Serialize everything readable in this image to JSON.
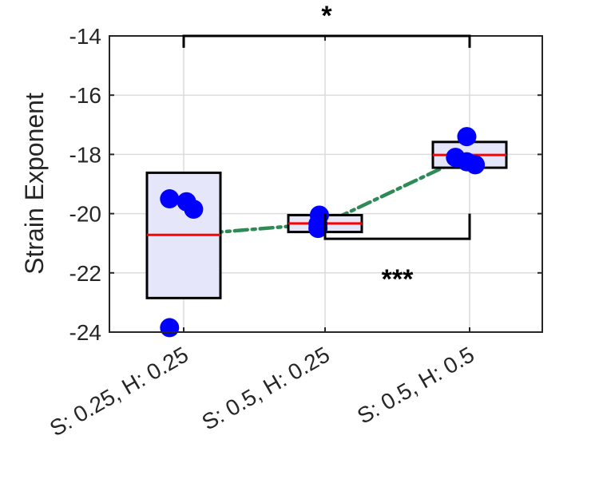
{
  "chart_data": {
    "type": "box",
    "ylabel": "Strain Exponent",
    "xlabel": "",
    "title": "",
    "ylim": [
      -24,
      -14
    ],
    "yticks": [
      -24,
      -22,
      -20,
      -18,
      -16,
      -14
    ],
    "ytick_labels": [
      "-24",
      "-22",
      "-20",
      "-18",
      "-16",
      "-14"
    ],
    "grid": true,
    "categories": [
      "S: 0.25, H: 0.25",
      "S: 0.5, H: 0.25",
      "S: 0.5, H: 0.5"
    ],
    "boxes": [
      {
        "category": "S: 0.25, H: 0.25",
        "q1": -22.85,
        "median": -20.72,
        "q3": -18.62
      },
      {
        "category": "S: 0.5, H: 0.25",
        "q1": -20.62,
        "median": -20.33,
        "q3": -20.05
      },
      {
        "category": "S: 0.5, H: 0.5",
        "q1": -18.45,
        "median": -18.02,
        "q3": -17.58
      }
    ],
    "points": [
      {
        "category_index": 0,
        "jitter": -0.1,
        "y": -19.5
      },
      {
        "category_index": 0,
        "jitter": 0.02,
        "y": -19.6
      },
      {
        "category_index": 0,
        "jitter": 0.07,
        "y": -19.85
      },
      {
        "category_index": 0,
        "jitter": -0.1,
        "y": -23.85
      },
      {
        "category_index": 1,
        "jitter": -0.04,
        "y": -20.05
      },
      {
        "category_index": 1,
        "jitter": -0.05,
        "y": -20.35
      },
      {
        "category_index": 1,
        "jitter": -0.05,
        "y": -20.5
      },
      {
        "category_index": 2,
        "jitter": -0.02,
        "y": -17.4
      },
      {
        "category_index": 2,
        "jitter": -0.1,
        "y": -18.1
      },
      {
        "category_index": 2,
        "jitter": -0.02,
        "y": -18.25
      },
      {
        "category_index": 2,
        "jitter": 0.04,
        "y": -18.35
      }
    ],
    "trend_line": [
      -20.72,
      -20.33,
      -18.02
    ],
    "significance": [
      {
        "from": 0,
        "to": 2,
        "label": "*",
        "y": -14,
        "tick_to": -14.4,
        "placement": "top"
      },
      {
        "from": 1,
        "to": 2,
        "label": "***",
        "y": -20.85,
        "tick_to": -20.0,
        "placement": "bottom"
      }
    ],
    "colors": {
      "box_fill": "#e6e6fa",
      "box_edge": "#000000",
      "median": "#ff0000",
      "points": "#0000ff",
      "trend": "#2e8b57",
      "grid": "#dcdcdc",
      "axis": "#262626"
    }
  }
}
